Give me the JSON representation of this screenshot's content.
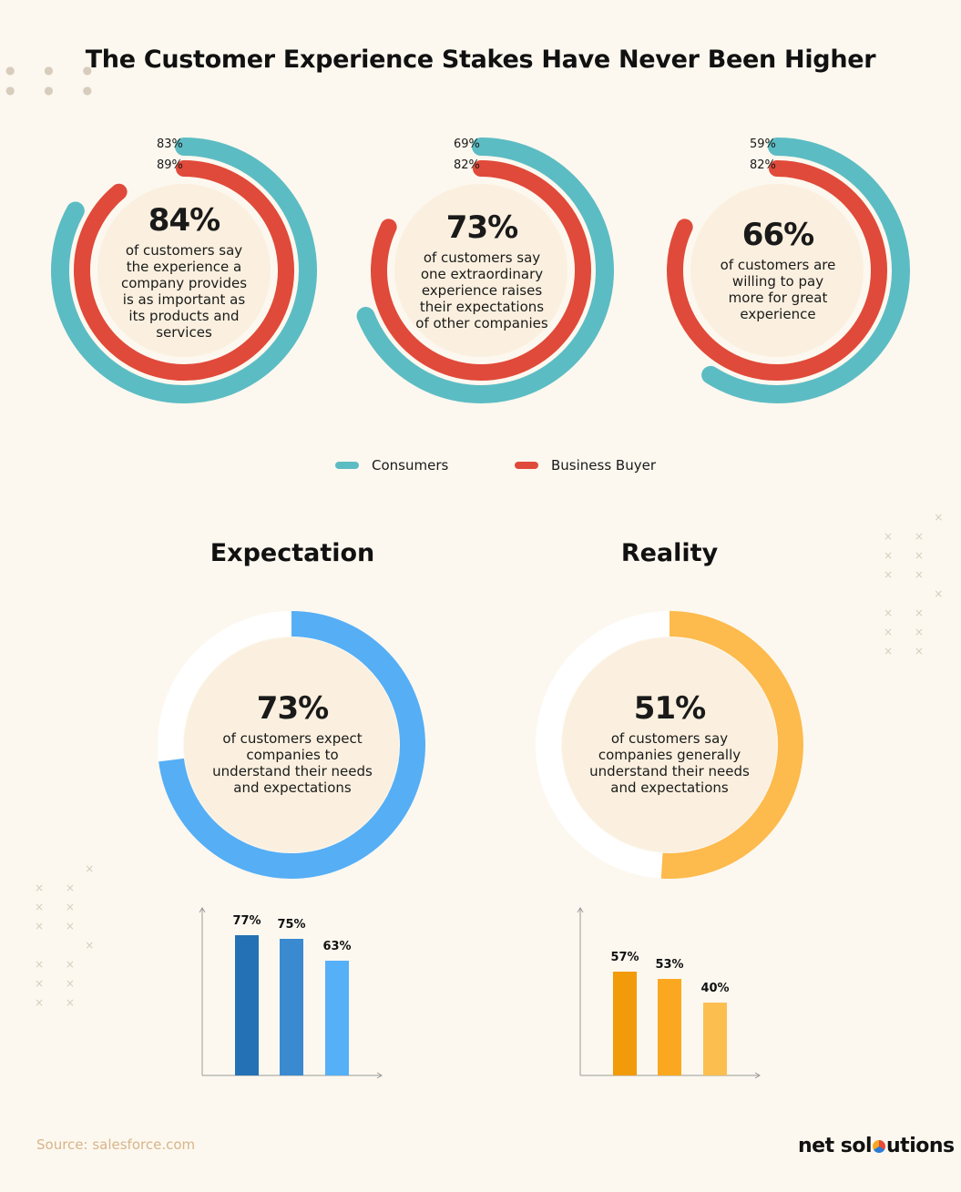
{
  "title": "The Customer Experience Stakes Have Never Been Higher",
  "colors": {
    "consumers": "#5cbcc3",
    "business_buyer": "#e04a3a",
    "expectation": "#56aef5",
    "reality": "#fdba4d",
    "bar_blue": [
      "#2471b5",
      "#3a8ad0",
      "#56b0f7"
    ],
    "bar_orange": [
      "#f19a0a",
      "#fba820",
      "#fdbe50"
    ],
    "inner_fill": "#fbf0df"
  },
  "rings": [
    {
      "headline": "84%",
      "text": "of customers say the experience a company provides is as important as its products and services",
      "consumers_label": "83%",
      "business_label": "89%"
    },
    {
      "headline": "73%",
      "text": "of customers say one extraordinary experience raises their expectations of other companies",
      "consumers_label": "69%",
      "business_label": "82%"
    },
    {
      "headline": "66%",
      "text": "of customers are willing to pay more for great experience",
      "consumers_label": "59%",
      "business_label": "82%"
    }
  ],
  "legend": {
    "consumers": "Consumers",
    "business_buyer": "Business Buyer"
  },
  "expectation": {
    "heading": "Expectation",
    "headline": "73%",
    "text": "of customers expect companies to understand their needs and expectations"
  },
  "reality": {
    "heading": "Reality",
    "headline": "51%",
    "text": "of customers say companies generally understand their needs and expectations"
  },
  "source": "Source: salesforce.com",
  "brand": {
    "before": "net sol",
    "after": "utions"
  },
  "chart_data": [
    {
      "type": "pie",
      "title": "",
      "series": [
        {
          "name": "Consumers",
          "values": [
            83,
            69,
            59
          ]
        },
        {
          "name": "Business Buyer",
          "values": [
            89,
            82,
            82
          ]
        }
      ],
      "categories": [
        "84%",
        "73%",
        "66%"
      ]
    },
    {
      "type": "pie",
      "title": "Expectation",
      "values": [
        73
      ]
    },
    {
      "type": "pie",
      "title": "Reality",
      "values": [
        51
      ]
    },
    {
      "type": "bar",
      "title": "Expectation",
      "categories": [
        "",
        "",
        ""
      ],
      "values": [
        77,
        75,
        63
      ],
      "labels": [
        "77%",
        "75%",
        "63%"
      ]
    },
    {
      "type": "bar",
      "title": "Reality",
      "categories": [
        "",
        "",
        ""
      ],
      "values": [
        57,
        53,
        40
      ],
      "labels": [
        "57%",
        "53%",
        "40%"
      ]
    }
  ]
}
